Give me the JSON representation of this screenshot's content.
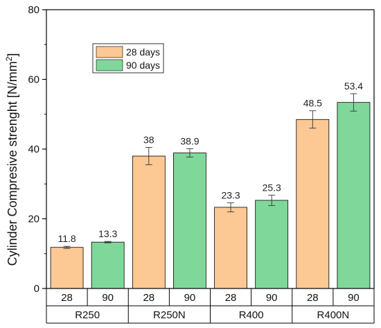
{
  "chart_data": {
    "type": "bar",
    "ylabel": "Cylinder Compresive strenght [N/mm",
    "ylabel_sup": "2",
    "ylabel_end": "]",
    "ylim": [
      0,
      80
    ],
    "yticks": [
      0,
      20,
      40,
      60,
      80
    ],
    "groups": [
      "R250",
      "R250N",
      "R400",
      "R400N"
    ],
    "subcategories": [
      "28",
      "90"
    ],
    "series": [
      {
        "name": "28 days",
        "color": "#fcc893",
        "values": [
          11.8,
          38,
          23.3,
          48.5
        ],
        "labels": [
          "11.8",
          "38",
          "23.3",
          "48.5"
        ],
        "errors": [
          0.3,
          2.5,
          1.3,
          2.5
        ]
      },
      {
        "name": "90 days",
        "color": "#7fd89a",
        "values": [
          13.3,
          38.9,
          25.3,
          53.4
        ],
        "labels": [
          "13.3",
          "38.9",
          "25.3",
          "53.4"
        ],
        "errors": [
          0.2,
          1.2,
          1.5,
          2.5
        ]
      }
    ],
    "legend_position": "top-left",
    "grid": false
  }
}
